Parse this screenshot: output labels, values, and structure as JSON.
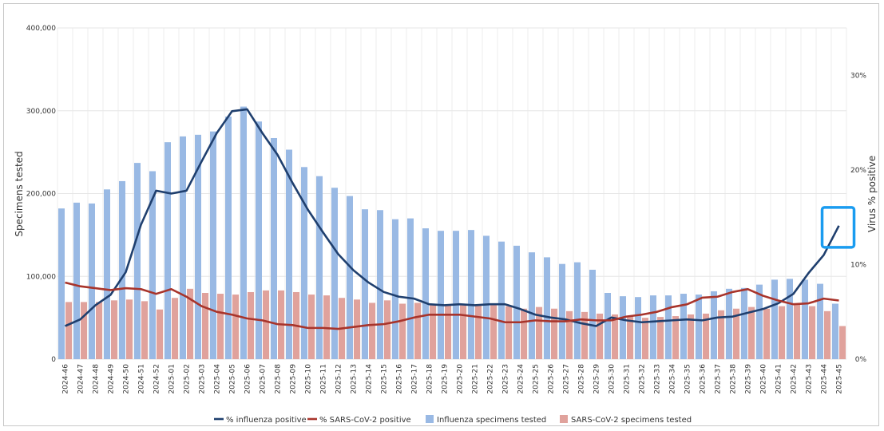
{
  "chart_data": {
    "type": "bar+line",
    "categories": [
      "2024-46",
      "2024-47",
      "2024-48",
      "2024-49",
      "2024-50",
      "2024-51",
      "2024-52",
      "2025-01",
      "2025-02",
      "2025-03",
      "2025-04",
      "2025-05",
      "2025-06",
      "2025-07",
      "2025-08",
      "2025-09",
      "2025-10",
      "2025-11",
      "2025-12",
      "2025-13",
      "2025-14",
      "2025-15",
      "2025-16",
      "2025-17",
      "2025-18",
      "2025-19",
      "2025-20",
      "2025-21",
      "2025-22",
      "2025-23",
      "2025-24",
      "2025-25",
      "2025-26",
      "2025-27",
      "2025-28",
      "2025-29",
      "2025-30",
      "2025-31",
      "2025-32",
      "2025-33",
      "2025-34",
      "2025-35",
      "2025-36",
      "2025-37",
      "2025-38",
      "2025-39",
      "2025-40",
      "2025-41",
      "2025-42",
      "2025-43",
      "2025-44",
      "2025-45"
    ],
    "series": [
      {
        "name": "Influenza specimens tested",
        "type": "bar",
        "axis": "left",
        "color": "#99b9e4",
        "values": [
          182000,
          189000,
          188000,
          205000,
          215000,
          237000,
          227000,
          262000,
          269000,
          271000,
          275000,
          293000,
          305000,
          287000,
          267000,
          253000,
          232000,
          221000,
          207000,
          197000,
          181000,
          180000,
          169000,
          170000,
          158000,
          155000,
          155000,
          156000,
          149000,
          142000,
          137000,
          129000,
          123000,
          115000,
          117000,
          108000,
          80000,
          76000,
          75000,
          77000,
          77000,
          79000,
          78000,
          82000,
          85000,
          86000,
          90000,
          96000,
          97000,
          96000,
          91000,
          67000
        ]
      },
      {
        "name": "SARS-CoV-2 specimens tested",
        "type": "bar",
        "axis": "left",
        "color": "#e0a29c",
        "values": [
          69000,
          69000,
          69000,
          71000,
          72000,
          70000,
          60000,
          74000,
          85000,
          80000,
          79000,
          78000,
          81000,
          83000,
          83000,
          81000,
          78000,
          77000,
          74000,
          72000,
          68000,
          71000,
          67000,
          68000,
          66000,
          66000,
          66000,
          66000,
          66000,
          64000,
          61000,
          63000,
          61000,
          58000,
          57000,
          55000,
          54000,
          52000,
          50000,
          51000,
          52000,
          54000,
          55000,
          59000,
          61000,
          63000,
          61000,
          64000,
          66000,
          64000,
          58000,
          40000
        ]
      },
      {
        "name": "% influenza positive",
        "type": "line",
        "axis": "right",
        "color": "#1f3f6e",
        "values": [
          3.5,
          4.2,
          5.7,
          6.8,
          9.2,
          14.2,
          17.8,
          17.5,
          17.8,
          20.9,
          23.9,
          26.2,
          26.4,
          23.9,
          21.6,
          18.6,
          15.8,
          13.4,
          11.1,
          9.4,
          8.1,
          7.1,
          6.6,
          6.4,
          5.8,
          5.7,
          5.8,
          5.7,
          5.8,
          5.8,
          5.3,
          4.7,
          4.4,
          4.2,
          3.8,
          3.5,
          4.4,
          4.1,
          3.9,
          4.0,
          4.1,
          4.2,
          4.1,
          4.4,
          4.5,
          4.9,
          5.3,
          5.9,
          6.9,
          9.1,
          11.0,
          14.1
        ]
      },
      {
        "name": "% SARS-CoV-2 positive",
        "type": "line",
        "axis": "right",
        "color": "#a8342b",
        "values": [
          8.1,
          7.7,
          7.5,
          7.3,
          7.5,
          7.4,
          6.9,
          7.4,
          6.6,
          5.6,
          5.0,
          4.7,
          4.3,
          4.1,
          3.7,
          3.6,
          3.3,
          3.3,
          3.2,
          3.4,
          3.6,
          3.7,
          4.0,
          4.4,
          4.7,
          4.7,
          4.7,
          4.5,
          4.3,
          3.9,
          3.9,
          4.1,
          4.0,
          4.0,
          4.2,
          4.1,
          4.1,
          4.5,
          4.7,
          5.0,
          5.5,
          5.8,
          6.5,
          6.6,
          7.1,
          7.4,
          6.7,
          6.2,
          5.8,
          5.9,
          6.4,
          6.2
        ]
      }
    ],
    "left_axis": {
      "label": "Specimens tested",
      "ylim": [
        0,
        400000
      ],
      "ticks": [
        0,
        100000,
        200000,
        300000,
        400000
      ],
      "tick_labels": [
        "0",
        "100,000",
        "200,000",
        "300,000",
        "400,000"
      ]
    },
    "right_axis": {
      "label": "Virus % positive",
      "ylim": [
        0,
        35
      ],
      "ticks": [
        0,
        10,
        20,
        30
      ],
      "tick_labels": [
        "0%",
        "10%",
        "20%",
        "30%"
      ]
    },
    "legend": {
      "position": "bottom",
      "entries": [
        "% influenza positive",
        "% SARS-CoV-2 positive",
        "Influenza specimens tested",
        "SARS-CoV-2 specimens tested"
      ]
    },
    "grid": true,
    "annotation": {
      "type": "highlight-box",
      "target_category": "2025-45",
      "series": "% influenza positive",
      "color": "#1a9cf0"
    }
  }
}
